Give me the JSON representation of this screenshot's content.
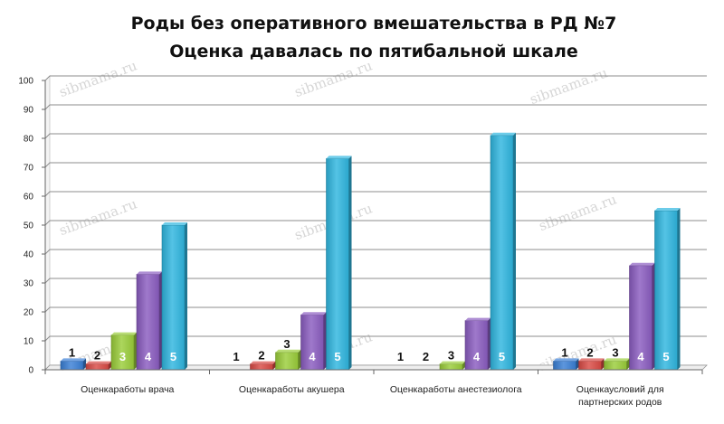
{
  "chart_data": {
    "type": "bar",
    "title": "Роды без оперативного вмешательства в РД №7",
    "subtitle": "Оценка давалась по пятибальной шкале",
    "categories": [
      [
        "Оценкаработы врача"
      ],
      [
        "Оценкаработы акушера"
      ],
      [
        "Оценкаработы анестезиолога"
      ],
      [
        "Оценкаусловий для",
        "партнерских родов"
      ]
    ],
    "series": [
      {
        "name": "1",
        "color": "#3a7fd5",
        "values": [
          3,
          0,
          0,
          3
        ]
      },
      {
        "name": "2",
        "color": "#d94a45",
        "values": [
          2,
          2,
          0,
          3
        ]
      },
      {
        "name": "3",
        "color": "#9acd3a",
        "values": [
          12,
          6,
          2,
          3
        ]
      },
      {
        "name": "4",
        "color": "#8a5cc0",
        "values": [
          33,
          19,
          17,
          36
        ]
      },
      {
        "name": "5",
        "color": "#2fb6df",
        "values": [
          50,
          73,
          81,
          55
        ]
      }
    ],
    "ylim": [
      0,
      100
    ],
    "yticks": [
      0,
      10,
      20,
      30,
      40,
      50,
      60,
      70,
      80,
      90,
      100
    ],
    "grid": true,
    "bar_labels": [
      "1",
      "2",
      "3",
      "4",
      "5"
    ],
    "watermark": "sibmama.ru"
  }
}
